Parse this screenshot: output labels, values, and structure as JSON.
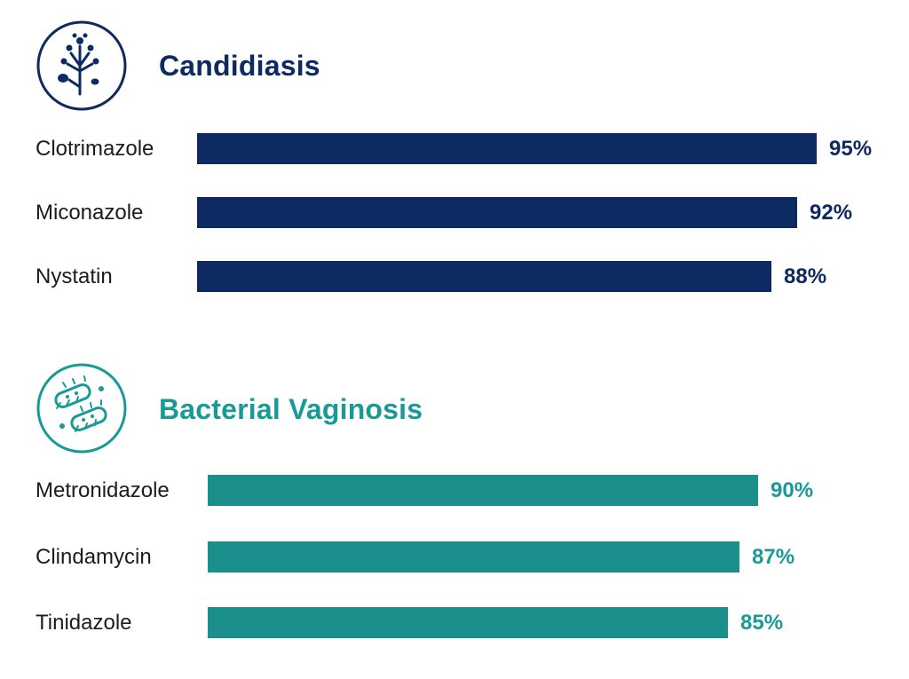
{
  "chart_data": [
    {
      "type": "bar",
      "orientation": "horizontal",
      "title": "Candidiasis",
      "icon": "fungus-icon",
      "color": "#0d2a62",
      "categories": [
        "Clotrimazole",
        "Miconazole",
        "Nystatin"
      ],
      "values": [
        95,
        92,
        88
      ],
      "value_labels": [
        "95%",
        "92%",
        "88%"
      ],
      "unit": "%",
      "grid": false
    },
    {
      "type": "bar",
      "orientation": "horizontal",
      "title": "Bacterial Vaginosis",
      "icon": "bacteria-icon",
      "color": "#1a8f8c",
      "categories": [
        "Metronidazole",
        "Clindamycin",
        "Tinidazole"
      ],
      "values": [
        90,
        87,
        85
      ],
      "value_labels": [
        "90%",
        "87%",
        "85%"
      ],
      "unit": "%",
      "grid": false
    }
  ]
}
